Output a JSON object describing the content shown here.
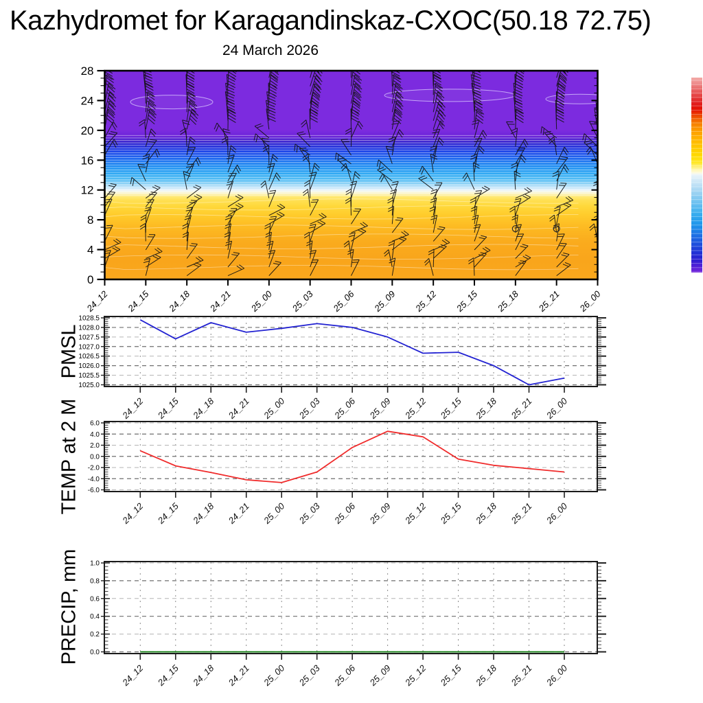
{
  "title": "Kazhydromet for Karagandinskaz-CXOC(50.18 72.75)",
  "subtitle": "24 March 2026",
  "time_labels": [
    "24_12",
    "24_15",
    "24_18",
    "24_21",
    "25_00",
    "25_03",
    "25_06",
    "25_09",
    "25_12",
    "25_15",
    "25_18",
    "25_21",
    "26_00"
  ],
  "colors": {
    "pmsl_line": "#2323d2",
    "temp_line": "#f02b2b",
    "precip_line": "#0a7a0a",
    "barb": "#111111",
    "grid_dark": "#6f6f6f",
    "grid_light": "#b3b3b3",
    "axis": "#1a1a1a"
  },
  "top_panel": {
    "yticks": [
      0,
      4,
      8,
      12,
      16,
      20,
      24,
      28
    ],
    "ylim": [
      0,
      28
    ],
    "gradient": [
      {
        "h": 28,
        "c": "#7C2BDF"
      },
      {
        "h": 20,
        "c": "#7C2BDF"
      },
      {
        "h": 19.2,
        "c": "#6B24D8"
      },
      {
        "h": 18.6,
        "c": "#4526CE"
      },
      {
        "h": 18,
        "c": "#2B2ED8"
      },
      {
        "h": 17.2,
        "c": "#1F45E8"
      },
      {
        "h": 16.2,
        "c": "#1F6AEF"
      },
      {
        "h": 15.2,
        "c": "#1F8DF2"
      },
      {
        "h": 14.2,
        "c": "#2FA9F3"
      },
      {
        "h": 13.4,
        "c": "#55BEF4"
      },
      {
        "h": 12.8,
        "c": "#93D4F6"
      },
      {
        "h": 12.3,
        "c": "#C8E7FA"
      },
      {
        "h": 12,
        "c": "#E8F4FB"
      },
      {
        "h": 11.75,
        "c": "#F8F8E4"
      },
      {
        "h": 11.5,
        "c": "#FCF3BC"
      },
      {
        "h": 11.1,
        "c": "#FFE973"
      },
      {
        "h": 10.6,
        "c": "#FFE052"
      },
      {
        "h": 9.8,
        "c": "#FFD83A"
      },
      {
        "h": 8.6,
        "c": "#FFCB2B"
      },
      {
        "h": 7,
        "c": "#FDBA22"
      },
      {
        "h": 5,
        "c": "#FAAB1D"
      },
      {
        "h": 2.5,
        "c": "#F9A51B"
      },
      {
        "h": 0,
        "c": "#FAA81D"
      }
    ]
  },
  "colorbar": {
    "stops": [
      {
        "p": 0,
        "c": "#F3A9A6"
      },
      {
        "p": 0.03,
        "c": "#EE8B8B"
      },
      {
        "p": 0.06,
        "c": "#E96666"
      },
      {
        "p": 0.1,
        "c": "#E43C3C"
      },
      {
        "p": 0.135,
        "c": "#E11B1B"
      },
      {
        "p": 0.165,
        "c": "#E41200"
      },
      {
        "p": 0.2,
        "c": "#EE4E00"
      },
      {
        "p": 0.235,
        "c": "#F67F00"
      },
      {
        "p": 0.27,
        "c": "#FC9C00"
      },
      {
        "p": 0.31,
        "c": "#FFB100"
      },
      {
        "p": 0.35,
        "c": "#FFC400"
      },
      {
        "p": 0.395,
        "c": "#FFD800"
      },
      {
        "p": 0.435,
        "c": "#FFE620"
      },
      {
        "p": 0.465,
        "c": "#FFF394"
      },
      {
        "p": 0.487,
        "c": "#FFFBDC"
      },
      {
        "p": 0.5,
        "c": "#E9F4FA"
      },
      {
        "p": 0.53,
        "c": "#CFE8F7"
      },
      {
        "p": 0.58,
        "c": "#A6D6F3"
      },
      {
        "p": 0.64,
        "c": "#6FC2F0"
      },
      {
        "p": 0.7,
        "c": "#38ADEE"
      },
      {
        "p": 0.755,
        "c": "#1E95EB"
      },
      {
        "p": 0.81,
        "c": "#1E6FE4"
      },
      {
        "p": 0.86,
        "c": "#1E4BDC"
      },
      {
        "p": 0.9,
        "c": "#2030D5"
      },
      {
        "p": 0.935,
        "c": "#2B1ED0"
      },
      {
        "p": 0.965,
        "c": "#4E1ED6"
      },
      {
        "p": 1,
        "c": "#7627DC"
      }
    ]
  },
  "chart_data": [
    {
      "type": "heatmap",
      "name": "wind-temperature-cross-section",
      "title": "24 March 2026",
      "x": [
        "24_12",
        "24_15",
        "24_18",
        "24_21",
        "25_00",
        "25_03",
        "25_06",
        "25_09",
        "25_12",
        "25_15",
        "25_18",
        "25_21",
        "26_00"
      ],
      "ylim": [
        0,
        28
      ],
      "yticks": [
        0,
        4,
        8,
        12,
        16,
        20,
        24,
        28
      ],
      "bands": [
        {
          "h_range": [
            0,
            11
          ],
          "color": "orange to golden yellow"
        },
        {
          "h_range": [
            11,
            12
          ],
          "color": "pale yellow to near white"
        },
        {
          "h_range": [
            12,
            17
          ],
          "color": "light blue to blue with many thin contour stripes"
        },
        {
          "h_range": [
            17,
            19
          ],
          "color": "dark blue"
        },
        {
          "h_range": [
            19,
            28
          ],
          "color": "purple with lighter contour patches near h=24"
        }
      ],
      "markers": [
        {
          "x": "25_18",
          "h": 6.8
        },
        {
          "x": "25_21",
          "h": 6.8
        }
      ],
      "wind_barbs": "13 time columns with black wind barbs at ~24 levels each"
    },
    {
      "type": "line",
      "name": "PMSL",
      "x": [
        "24_12",
        "24_15",
        "24_18",
        "24_21",
        "25_00",
        "25_03",
        "25_06",
        "25_09",
        "25_12",
        "25_15",
        "25_18",
        "25_21",
        "26_00"
      ],
      "values": [
        1028.4,
        1027.4,
        1028.25,
        1027.75,
        1027.95,
        1028.2,
        1028.0,
        1027.5,
        1026.65,
        1026.7,
        1026.0,
        1025.0,
        1025.35
      ],
      "ylim": [
        1025.0,
        1028.5
      ],
      "ytick_step": 0.5,
      "color": "#2323d2"
    },
    {
      "type": "line",
      "name": "TEMP at 2 M",
      "x": [
        "24_12",
        "24_15",
        "24_18",
        "24_21",
        "25_00",
        "25_03",
        "25_06",
        "25_09",
        "25_12",
        "25_15",
        "25_18",
        "25_21",
        "26_00"
      ],
      "values": [
        1.0,
        -1.7,
        -2.9,
        -4.2,
        -4.7,
        -2.8,
        1.6,
        4.5,
        3.5,
        -0.5,
        -1.6,
        -2.2,
        -2.8
      ],
      "ylim": [
        -6.0,
        6.0
      ],
      "ytick_step": 2.0,
      "color": "#f02b2b"
    },
    {
      "type": "line",
      "name": "PRECIP, mm",
      "x": [
        "24_12",
        "24_15",
        "24_18",
        "24_21",
        "25_00",
        "25_03",
        "25_06",
        "25_09",
        "25_12",
        "25_15",
        "25_18",
        "25_21",
        "26_00"
      ],
      "values": [
        0,
        0,
        0,
        0,
        0,
        0,
        0,
        0,
        0,
        0,
        0,
        0,
        0
      ],
      "ylim": [
        0.0,
        1.0
      ],
      "ytick_step": 0.2,
      "color": "#0a7a0a"
    }
  ]
}
